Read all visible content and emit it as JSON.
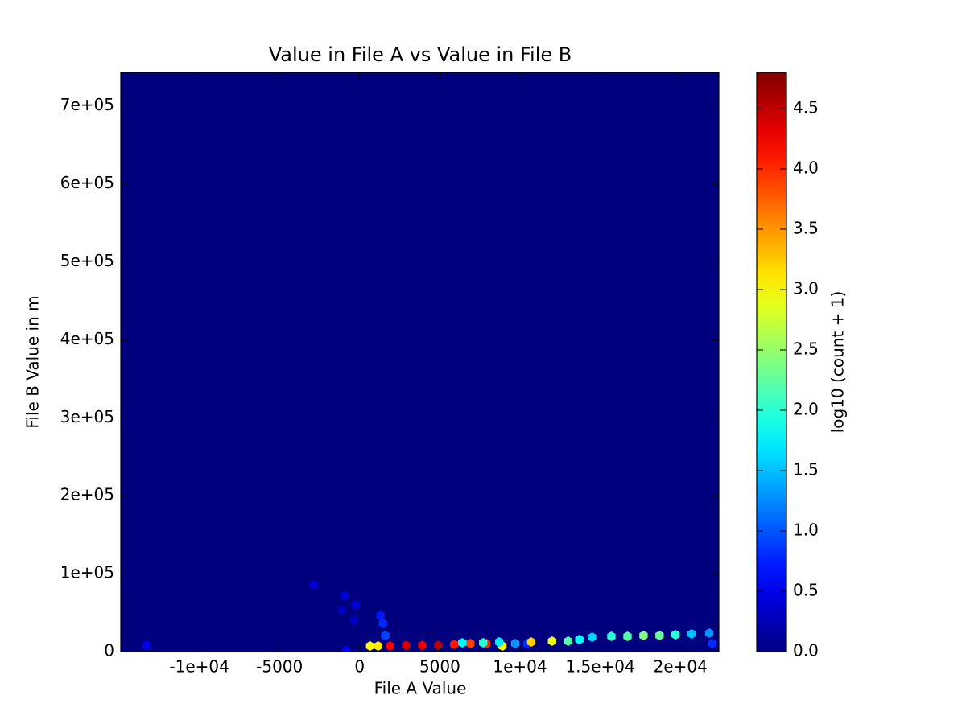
{
  "chart_data": {
    "type": "hexbin",
    "title": "Value in File A vs Value in File B",
    "xlabel": "File A Value",
    "ylabel": "File B Value in m",
    "colorbar_label": "log10 (count + 1)",
    "colormap": "jet",
    "xlim": [
      -14900,
      22400
    ],
    "ylim": [
      0,
      743000
    ],
    "xticks": [
      {
        "value": -10000,
        "label": "-1e+04"
      },
      -5000,
      0,
      5000,
      {
        "value": 10000,
        "label": "1e+04"
      },
      {
        "value": 15000,
        "label": "1.5e+04"
      },
      {
        "value": 20000,
        "label": "2e+04"
      }
    ],
    "yticks": [
      0,
      {
        "value": 100000,
        "label": "1e+05"
      },
      {
        "value": 200000,
        "label": "2e+05"
      },
      {
        "value": 300000,
        "label": "3e+05"
      },
      {
        "value": 400000,
        "label": "4e+05"
      },
      {
        "value": 500000,
        "label": "5e+05"
      },
      {
        "value": 600000,
        "label": "6e+05"
      },
      {
        "value": 700000,
        "label": "7e+05"
      }
    ],
    "clim": [
      0,
      4.8
    ],
    "cticks": [
      {
        "value": 0,
        "label": "0.0"
      },
      0.5,
      {
        "value": 1,
        "label": "1.0"
      },
      1.5,
      {
        "value": 2,
        "label": "2.0"
      },
      2.5,
      {
        "value": 3,
        "label": "3.0"
      },
      3.5,
      {
        "value": 4,
        "label": "4.0"
      },
      4.5
    ],
    "x": [
      -13300,
      -2860,
      -950,
      -250,
      -1100,
      -350,
      1300,
      1450,
      1600,
      650,
      1150,
      1900,
      2900,
      3900,
      4900,
      5900,
      6900,
      7900,
      8900,
      6400,
      7700,
      8700,
      9700,
      10450,
      10700,
      12000,
      13000,
      13700,
      14500,
      15700,
      16700,
      17700,
      18700,
      19700,
      20700,
      21800,
      22000,
      -850
    ],
    "y": [
      8300,
      85700,
      72000,
      60000,
      53700,
      40000,
      46400,
      36000,
      20600,
      7200,
      7200,
      7200,
      8000,
      8000,
      8000,
      9300,
      10300,
      10300,
      7200,
      11300,
      11300,
      12400,
      10300,
      10300,
      12400,
      13400,
      13400,
      15500,
      18600,
      19600,
      19600,
      20600,
      20600,
      21700,
      22700,
      23700,
      10300,
      2000
    ],
    "values": [
      0.5,
      0.4,
      0.4,
      0.4,
      0.3,
      0.3,
      0.7,
      0.8,
      0.9,
      3.0,
      3.1,
      4.2,
      4.4,
      4.3,
      4.5,
      4.1,
      3.9,
      4.0,
      3.0,
      1.8,
      2.0,
      1.7,
      1.3,
      0.8,
      3.2,
      2.9,
      2.2,
      1.8,
      1.6,
      2.0,
      2.2,
      2.4,
      2.3,
      2.0,
      1.5,
      1.3,
      0.8,
      0.5
    ]
  }
}
